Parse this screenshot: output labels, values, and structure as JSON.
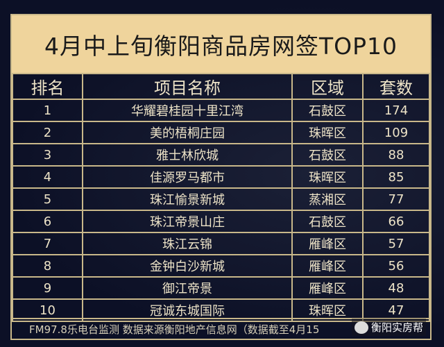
{
  "title": "4月中上旬衡阳商品房网签TOP10",
  "columns": [
    "排名",
    "项目名称",
    "区域",
    "套数"
  ],
  "rows": [
    [
      "1",
      "华耀碧桂园十里江湾",
      "石鼓区",
      "174"
    ],
    [
      "2",
      "美的梧桐庄园",
      "珠晖区",
      "109"
    ],
    [
      "3",
      "雅士林欣城",
      "石鼓区",
      "88"
    ],
    [
      "4",
      "佳源罗马都市",
      "珠晖区",
      "85"
    ],
    [
      "5",
      "珠江愉景新城",
      "蒸湘区",
      "77"
    ],
    [
      "6",
      "珠江帝景山庄",
      "石鼓区",
      "66"
    ],
    [
      "7",
      "珠江云锦",
      "雁峰区",
      "57"
    ],
    [
      "8",
      "金钟白沙新城",
      "雁峰区",
      "56"
    ],
    [
      "9",
      "御江帝景",
      "雁峰区",
      "48"
    ],
    [
      "10",
      "冠诚东城国际",
      "珠晖区",
      "47"
    ]
  ],
  "footer": "FM97.8乐电台监测 数据来源衡阳地产信息网（数据截至4月15",
  "watermark": "衡阳实房帮",
  "colors": {
    "title_bg": "#efd49c",
    "border": "#c9b88a",
    "background": "#0d1128"
  }
}
